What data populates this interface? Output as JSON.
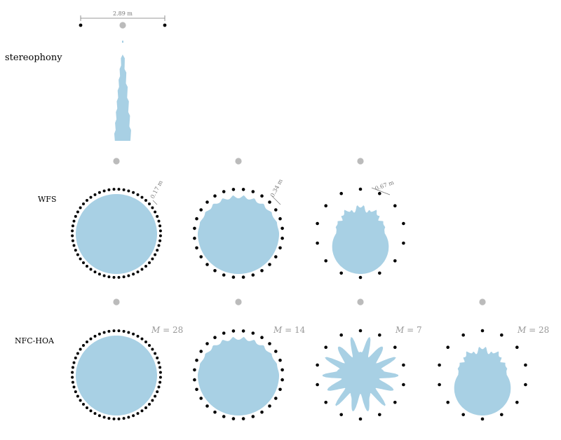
{
  "colors": {
    "field": "#a8d0e4",
    "speaker": "#000000",
    "listener": "#bbbbbb",
    "dimension": "#777777",
    "order_label": "#999999"
  },
  "rows": [
    {
      "label": "stereophony",
      "panels": [
        {
          "type": "stereo",
          "dimension": "2.89 m"
        }
      ]
    },
    {
      "label": "WFS",
      "panels": [
        {
          "speakers": 56,
          "dimension": "0.17 m",
          "field": "full"
        },
        {
          "speakers": 28,
          "dimension": "0.34 m",
          "field": "scalloped"
        },
        {
          "speakers": 14,
          "dimension": "0.67 m",
          "field": "fingers"
        }
      ]
    },
    {
      "label": "NFC-HOA",
      "panels": [
        {
          "speakers": 56,
          "order_var": "M",
          "order_eq": " = 28",
          "field": "full"
        },
        {
          "speakers": 28,
          "order_var": "M",
          "order_eq": " = 14",
          "field": "scalloped"
        },
        {
          "speakers": 14,
          "order_var": "M",
          "order_eq": " = 7",
          "field": "star"
        },
        {
          "speakers": 14,
          "order_var": "M",
          "order_eq": " = 28",
          "field": "fingers"
        }
      ]
    }
  ]
}
